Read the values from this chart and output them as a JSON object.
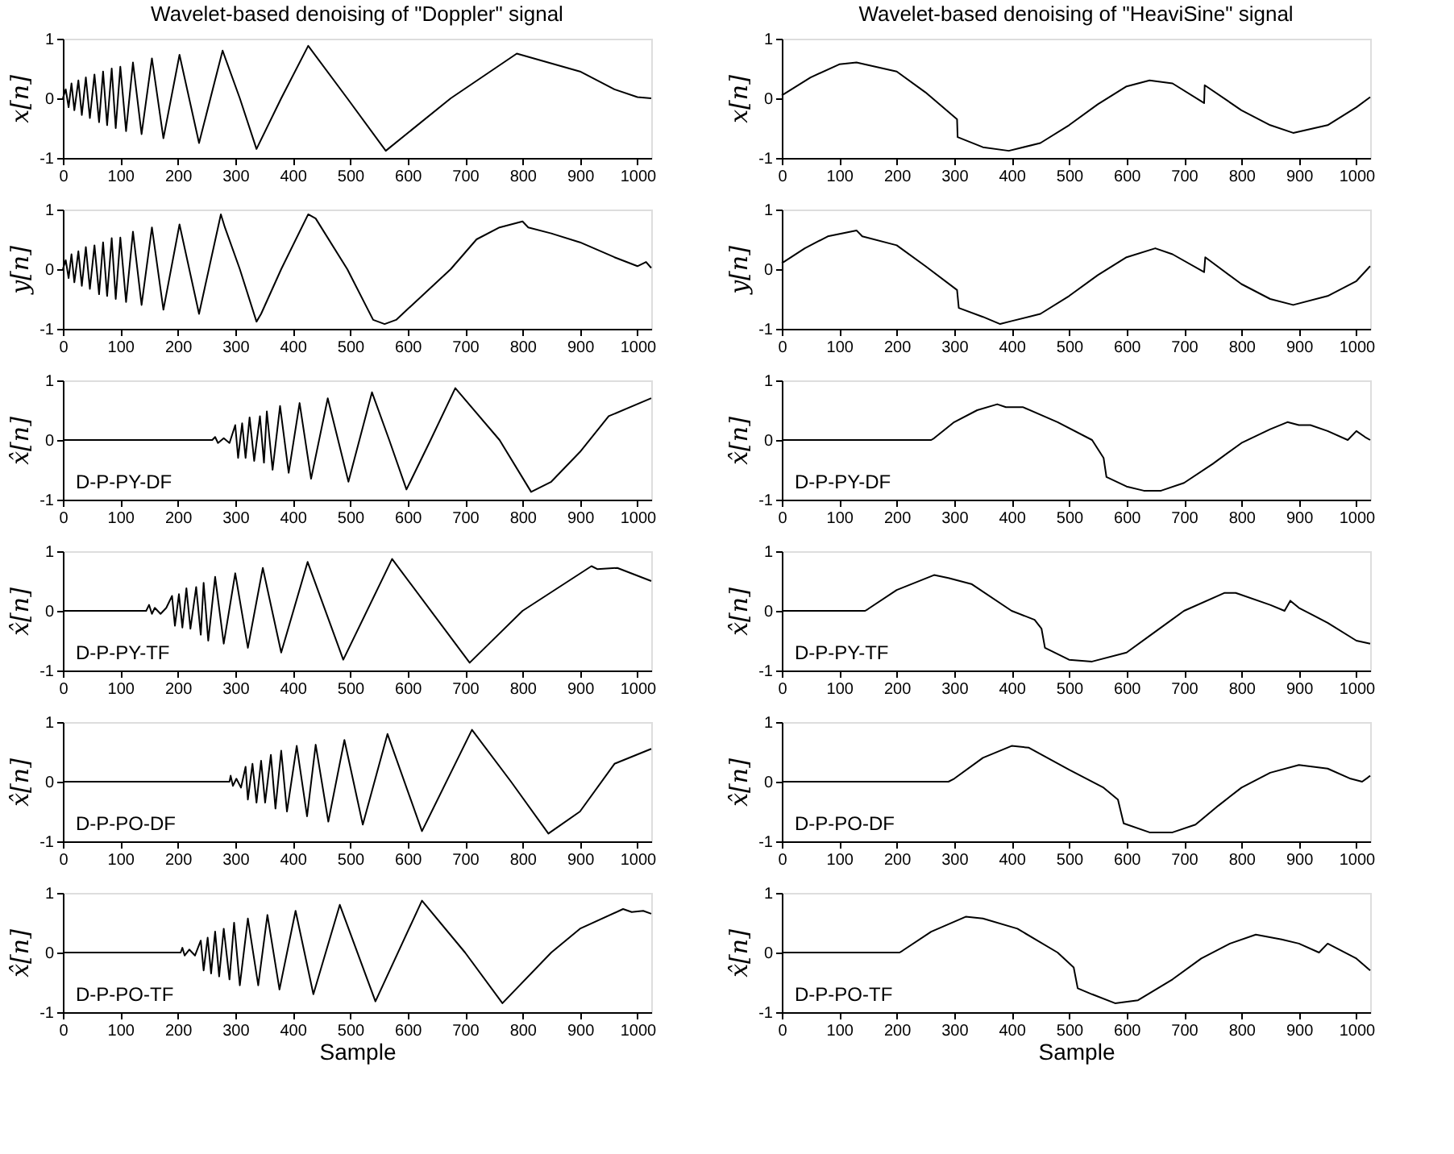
{
  "chart_data": [
    {
      "type": "line",
      "title": "Wavelet-based denoising of \"Doppler\" signal",
      "ylabel": "x[n]",
      "xlim": [
        0,
        1024
      ],
      "ylim": [
        -1,
        1
      ],
      "xticks": [
        0,
        100,
        200,
        300,
        400,
        500,
        600,
        700,
        800,
        900,
        1000
      ],
      "yticks": [
        -1,
        0,
        1
      ],
      "grid": false,
      "color": "#000000",
      "x": [
        0,
        5,
        10,
        15,
        20,
        27,
        33,
        40,
        47,
        55,
        63,
        70,
        77,
        85,
        92,
        100,
        110,
        122,
        137,
        155,
        175,
        203,
        237,
        278,
        308,
        337,
        380,
        427,
        495,
        562,
        675,
        790,
        900,
        960,
        1000,
        1024
      ],
      "values": [
        0,
        0.15,
        -0.15,
        0.25,
        -0.2,
        0.3,
        -0.28,
        0.35,
        -0.33,
        0.4,
        -0.4,
        0.45,
        -0.45,
        0.5,
        -0.5,
        0.53,
        -0.55,
        0.6,
        -0.6,
        0.67,
        -0.67,
        0.73,
        -0.75,
        0.8,
        0,
        -0.85,
        0,
        0.88,
        0,
        -0.88,
        0,
        0.75,
        0.45,
        0.15,
        0.02,
        0
      ]
    },
    {
      "type": "line",
      "ylabel": "y[n]",
      "xlim": [
        0,
        1024
      ],
      "ylim": [
        -1,
        1
      ],
      "xticks": [
        0,
        100,
        200,
        300,
        400,
        500,
        600,
        700,
        800,
        900,
        1000
      ],
      "yticks": [
        -1,
        0,
        1
      ],
      "grid": false,
      "color": "#000000",
      "x": [
        0,
        5,
        10,
        15,
        20,
        27,
        33,
        40,
        47,
        55,
        63,
        70,
        77,
        85,
        92,
        100,
        110,
        122,
        137,
        155,
        175,
        203,
        237,
        275,
        282,
        308,
        337,
        345,
        380,
        427,
        440,
        495,
        540,
        560,
        580,
        675,
        720,
        760,
        800,
        810,
        850,
        900,
        960,
        1000,
        1015,
        1024
      ],
      "values": [
        0,
        0.15,
        -0.15,
        0.25,
        -0.22,
        0.3,
        -0.28,
        0.37,
        -0.33,
        0.4,
        -0.42,
        0.45,
        -0.45,
        0.52,
        -0.5,
        0.53,
        -0.55,
        0.63,
        -0.6,
        0.7,
        -0.68,
        0.75,
        -0.75,
        0.92,
        0.7,
        0,
        -0.88,
        -0.75,
        0,
        0.92,
        0.85,
        0,
        -0.85,
        -0.92,
        -0.85,
        0,
        0.5,
        0.7,
        0.8,
        0.7,
        0.6,
        0.45,
        0.2,
        0.05,
        0.12,
        0.02
      ]
    },
    {
      "type": "line",
      "ylabel": "x̂[n]",
      "annotations": [
        "D-P-PY-DF"
      ],
      "xlim": [
        0,
        1024
      ],
      "ylim": [
        -1,
        1
      ],
      "xticks": [
        0,
        100,
        200,
        300,
        400,
        500,
        600,
        700,
        800,
        900,
        1000
      ],
      "yticks": [
        -1,
        0,
        1
      ],
      "grid": false,
      "color": "#000000",
      "x": [
        0,
        260,
        265,
        270,
        280,
        290,
        300,
        305,
        312,
        318,
        325,
        333,
        343,
        350,
        355,
        365,
        378,
        393,
        412,
        432,
        461,
        497,
        538,
        568,
        598,
        640,
        683,
        760,
        815,
        850,
        900,
        950,
        1024
      ],
      "values": [
        0,
        0,
        0.05,
        -0.05,
        0.03,
        -0.05,
        0.25,
        -0.3,
        0.28,
        -0.3,
        0.38,
        -0.35,
        0.4,
        -0.38,
        0.48,
        -0.5,
        0.57,
        -0.55,
        0.62,
        -0.65,
        0.7,
        -0.7,
        0.8,
        0,
        -0.83,
        0,
        0.87,
        0,
        -0.87,
        -0.7,
        -0.2,
        0.4,
        0.7
      ]
    },
    {
      "type": "line",
      "ylabel": "x̂[n]",
      "annotations": [
        "D-P-PY-TF"
      ],
      "xlim": [
        0,
        1024
      ],
      "ylim": [
        -1,
        1
      ],
      "xticks": [
        0,
        100,
        200,
        300,
        400,
        500,
        600,
        700,
        800,
        900,
        1000
      ],
      "yticks": [
        -1,
        0,
        1
      ],
      "grid": false,
      "color": "#000000",
      "x": [
        0,
        145,
        150,
        155,
        160,
        170,
        180,
        190,
        195,
        202,
        208,
        215,
        222,
        232,
        240,
        245,
        253,
        265,
        280,
        300,
        322,
        348,
        380,
        426,
        488,
        573,
        708,
        800,
        920,
        930,
        965,
        1024
      ],
      "values": [
        0,
        0,
        0.1,
        -0.05,
        0.05,
        -0.05,
        0.05,
        0.25,
        -0.25,
        0.28,
        -0.28,
        0.38,
        -0.3,
        0.4,
        -0.4,
        0.47,
        -0.5,
        0.57,
        -0.55,
        0.63,
        -0.62,
        0.72,
        -0.7,
        0.82,
        -0.82,
        0.87,
        -0.87,
        0,
        0.75,
        0.7,
        0.72,
        0.5
      ]
    },
    {
      "type": "line",
      "ylabel": "x̂[n]",
      "annotations": [
        "D-P-PO-DF"
      ],
      "xlim": [
        0,
        1024
      ],
      "ylim": [
        -1,
        1
      ],
      "xticks": [
        0,
        100,
        200,
        300,
        400,
        500,
        600,
        700,
        800,
        900,
        1000
      ],
      "yticks": [
        -1,
        0,
        1
      ],
      "grid": false,
      "color": "#000000",
      "x": [
        0,
        290,
        292,
        296,
        302,
        310,
        318,
        322,
        330,
        337,
        345,
        352,
        362,
        370,
        380,
        390,
        407,
        425,
        440,
        462,
        490,
        522,
        565,
        625,
        712,
        780,
        845,
        900,
        960,
        1024
      ],
      "values": [
        0,
        0,
        0.1,
        -0.07,
        0.05,
        -0.1,
        0.25,
        -0.3,
        0.3,
        -0.35,
        0.35,
        -0.35,
        0.45,
        -0.45,
        0.52,
        -0.5,
        0.6,
        -0.58,
        0.62,
        -0.67,
        0.7,
        -0.72,
        0.8,
        -0.83,
        0.87,
        0,
        -0.87,
        -0.5,
        0.3,
        0.55
      ]
    },
    {
      "type": "line",
      "ylabel": "x̂[n]",
      "xlabel": "Sample",
      "annotations": [
        "D-P-PO-TF"
      ],
      "xlim": [
        0,
        1024
      ],
      "ylim": [
        -1,
        1
      ],
      "xticks": [
        0,
        100,
        200,
        300,
        400,
        500,
        600,
        700,
        800,
        900,
        1000
      ],
      "yticks": [
        -1,
        0,
        1
      ],
      "grid": false,
      "color": "#000000",
      "x": [
        0,
        205,
        208,
        212,
        220,
        230,
        240,
        245,
        252,
        258,
        265,
        272,
        280,
        290,
        298,
        308,
        322,
        340,
        356,
        377,
        405,
        436,
        482,
        544,
        625,
        700,
        765,
        850,
        900,
        975,
        990,
        1010,
        1024
      ],
      "values": [
        0,
        0,
        0.08,
        -0.05,
        0.05,
        -0.05,
        0.2,
        -0.3,
        0.25,
        -0.35,
        0.35,
        -0.4,
        0.4,
        -0.45,
        0.5,
        -0.55,
        0.57,
        -0.55,
        0.63,
        -0.62,
        0.7,
        -0.7,
        0.8,
        -0.82,
        0.87,
        0,
        -0.85,
        0,
        0.4,
        0.73,
        0.68,
        0.7,
        0.65
      ]
    },
    {
      "type": "line",
      "title": "Wavelet-based denoising of \"HeaviSine\" signal",
      "ylabel": "x[n]",
      "xlim": [
        0,
        1024
      ],
      "ylim": [
        -1,
        1
      ],
      "xticks": [
        0,
        100,
        200,
        300,
        400,
        500,
        600,
        700,
        800,
        900,
        1000
      ],
      "yticks": [
        -1,
        0,
        1
      ],
      "grid": false,
      "color": "#000000",
      "x": [
        0,
        50,
        100,
        130,
        200,
        250,
        305,
        306,
        350,
        395,
        450,
        500,
        550,
        600,
        640,
        680,
        735,
        736,
        800,
        850,
        890,
        950,
        1000,
        1024
      ],
      "values": [
        0.05,
        0.35,
        0.57,
        0.6,
        0.45,
        0.1,
        -0.35,
        -0.65,
        -0.82,
        -0.88,
        -0.75,
        -0.45,
        -0.1,
        0.2,
        0.3,
        0.25,
        -0.08,
        0.22,
        -0.2,
        -0.45,
        -0.58,
        -0.45,
        -0.15,
        0.02
      ]
    },
    {
      "type": "line",
      "ylabel": "y[n]",
      "xlim": [
        0,
        1024
      ],
      "ylim": [
        -1,
        1
      ],
      "xticks": [
        0,
        100,
        200,
        300,
        400,
        500,
        600,
        700,
        800,
        900,
        1000
      ],
      "yticks": [
        -1,
        0,
        1
      ],
      "grid": false,
      "color": "#000000",
      "x": [
        0,
        40,
        80,
        130,
        140,
        200,
        250,
        305,
        308,
        350,
        380,
        400,
        450,
        500,
        550,
        600,
        650,
        680,
        735,
        737,
        800,
        850,
        890,
        950,
        1000,
        1024
      ],
      "values": [
        0.1,
        0.35,
        0.55,
        0.65,
        0.55,
        0.4,
        0.05,
        -0.35,
        -0.65,
        -0.8,
        -0.92,
        -0.87,
        -0.75,
        -0.45,
        -0.1,
        0.2,
        0.35,
        0.25,
        -0.05,
        0.2,
        -0.25,
        -0.5,
        -0.6,
        -0.45,
        -0.2,
        0.05
      ]
    },
    {
      "type": "line",
      "ylabel": "x̂[n]",
      "annotations": [
        "D-P-PY-DF"
      ],
      "xlim": [
        0,
        1024
      ],
      "ylim": [
        -1,
        1
      ],
      "xticks": [
        0,
        100,
        200,
        300,
        400,
        500,
        600,
        700,
        800,
        900,
        1000
      ],
      "yticks": [
        -1,
        0,
        1
      ],
      "grid": false,
      "color": "#000000",
      "x": [
        0,
        260,
        265,
        300,
        340,
        375,
        390,
        420,
        480,
        540,
        560,
        565,
        600,
        630,
        660,
        700,
        750,
        800,
        850,
        880,
        900,
        920,
        950,
        985,
        1000,
        1015,
        1024
      ],
      "values": [
        0,
        0,
        0.03,
        0.3,
        0.5,
        0.6,
        0.55,
        0.55,
        0.3,
        0,
        -0.3,
        -0.62,
        -0.78,
        -0.85,
        -0.85,
        -0.72,
        -0.4,
        -0.05,
        0.18,
        0.3,
        0.25,
        0.25,
        0.15,
        0,
        0.15,
        0.05,
        0
      ]
    },
    {
      "type": "line",
      "ylabel": "x̂[n]",
      "annotations": [
        "D-P-PY-TF"
      ],
      "xlim": [
        0,
        1024
      ],
      "ylim": [
        -1,
        1
      ],
      "xticks": [
        0,
        100,
        200,
        300,
        400,
        500,
        600,
        700,
        800,
        900,
        1000
      ],
      "yticks": [
        -1,
        0,
        1
      ],
      "grid": false,
      "color": "#000000",
      "x": [
        0,
        145,
        150,
        200,
        265,
        290,
        330,
        400,
        440,
        452,
        458,
        500,
        540,
        600,
        650,
        700,
        770,
        790,
        850,
        875,
        885,
        900,
        950,
        1000,
        1024
      ],
      "values": [
        0,
        0,
        0.03,
        0.35,
        0.6,
        0.55,
        0.45,
        0,
        -0.15,
        -0.3,
        -0.62,
        -0.82,
        -0.85,
        -0.7,
        -0.35,
        0,
        0.3,
        0.3,
        0.1,
        0,
        0.17,
        0.05,
        -0.2,
        -0.5,
        -0.55
      ]
    },
    {
      "type": "line",
      "ylabel": "x̂[n]",
      "annotations": [
        "D-P-PO-DF"
      ],
      "xlim": [
        0,
        1024
      ],
      "ylim": [
        -1,
        1
      ],
      "xticks": [
        0,
        100,
        200,
        300,
        400,
        500,
        600,
        700,
        800,
        900,
        1000
      ],
      "yticks": [
        -1,
        0,
        1
      ],
      "grid": false,
      "color": "#000000",
      "x": [
        0,
        290,
        300,
        350,
        400,
        430,
        500,
        560,
        585,
        595,
        640,
        680,
        720,
        760,
        800,
        850,
        900,
        950,
        990,
        1010,
        1020,
        1024
      ],
      "values": [
        0,
        0,
        0.05,
        0.4,
        0.6,
        0.57,
        0.2,
        -0.1,
        -0.3,
        -0.7,
        -0.85,
        -0.85,
        -0.72,
        -0.4,
        -0.1,
        0.15,
        0.28,
        0.22,
        0.05,
        0,
        0.07,
        0.1
      ]
    },
    {
      "type": "line",
      "ylabel": "x̂[n]",
      "xlabel": "Sample",
      "annotations": [
        "D-P-PO-TF"
      ],
      "xlim": [
        0,
        1024
      ],
      "ylim": [
        -1,
        1
      ],
      "xticks": [
        0,
        100,
        200,
        300,
        400,
        500,
        600,
        700,
        800,
        900,
        1000
      ],
      "yticks": [
        -1,
        0,
        1
      ],
      "grid": false,
      "color": "#000000",
      "x": [
        0,
        205,
        210,
        260,
        320,
        350,
        410,
        480,
        508,
        515,
        540,
        580,
        620,
        680,
        730,
        780,
        825,
        870,
        900,
        935,
        950,
        1000,
        1024
      ],
      "values": [
        0,
        0,
        0.03,
        0.35,
        0.6,
        0.57,
        0.4,
        0,
        -0.25,
        -0.6,
        -0.7,
        -0.85,
        -0.8,
        -0.45,
        -0.1,
        0.15,
        0.3,
        0.22,
        0.15,
        0,
        0.15,
        -0.1,
        -0.3
      ]
    }
  ]
}
